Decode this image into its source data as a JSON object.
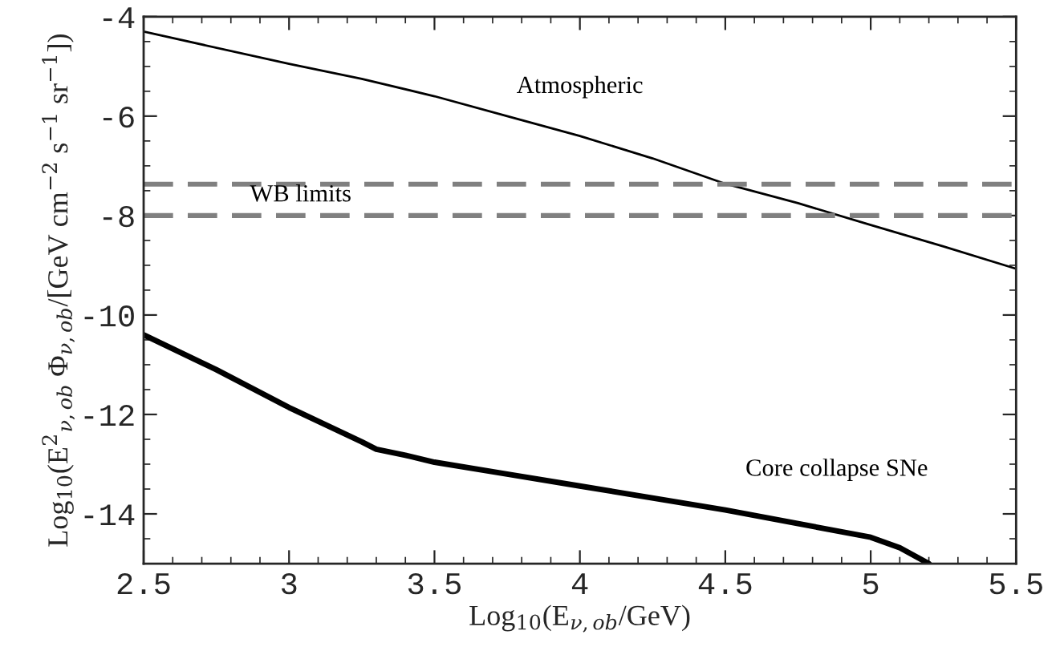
{
  "chart_data": {
    "type": "line",
    "xlabel": "Log$_{10}$(E$_{ν,ob}$/GeV)",
    "ylabel": "Log$_{10}$(E$^{2}$$_{ν,ob}$ Φ$_{ν,ob}$/[GeV cm$^{−2}$ s$^{−1}$ sr$^{−1}$])",
    "series": [
      {
        "name": "Atmospheric",
        "color": "#000000",
        "x": [
          2.5,
          3.0,
          3.25,
          3.5,
          3.75,
          4.0,
          4.25,
          4.5,
          4.75,
          5.0,
          5.25,
          5.5
        ],
        "values": [
          -4.3,
          -4.95,
          -5.25,
          -5.6,
          -6.0,
          -6.4,
          -6.85,
          -7.36,
          -7.75,
          -8.19,
          -8.62,
          -9.07
        ]
      },
      {
        "name": "Core collapse SNe",
        "color": "#000000",
        "x": [
          2.5,
          2.75,
          3.0,
          3.25,
          3.3,
          3.4,
          3.5,
          3.75,
          4.0,
          4.5,
          5.0,
          5.1,
          5.2
        ],
        "values": [
          -10.4,
          -11.1,
          -11.86,
          -12.55,
          -12.7,
          -12.82,
          -12.96,
          -13.2,
          -13.44,
          -13.92,
          -14.47,
          -14.68,
          -15.0
        ]
      }
    ],
    "ref_lines": [
      {
        "axis": "y",
        "value": -7.37,
        "color": "#808080",
        "line_style": "dashed"
      },
      {
        "axis": "y",
        "value": -8.0,
        "color": "#808080",
        "line_style": "dashed",
        "label": "WB limits"
      }
    ],
    "xlim": [
      2.5,
      5.5
    ],
    "ylim": [
      -15,
      -4
    ],
    "xticks": [
      2.5,
      3,
      3.5,
      4,
      4.5,
      5,
      5.5
    ],
    "yticks": [
      -4,
      -6,
      -8,
      -10,
      -12,
      -14
    ],
    "grid": false,
    "legend": false,
    "marker": "none",
    "line_style": "solid"
  }
}
